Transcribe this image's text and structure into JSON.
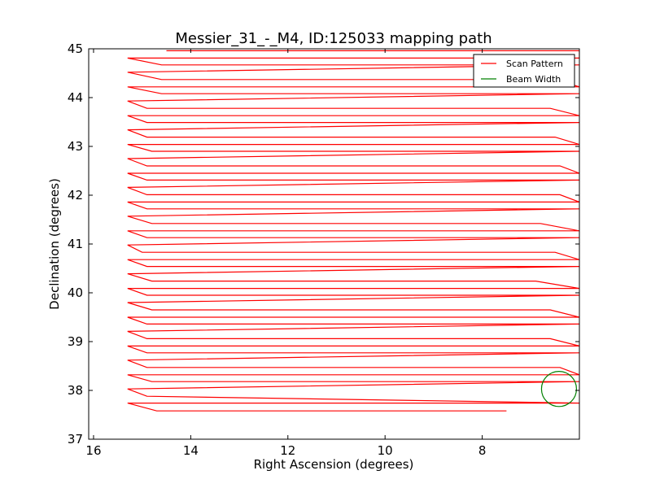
{
  "chart_data": {
    "type": "line",
    "title": "Messier_31_-_M4, ID:125033 mapping path",
    "xlabel": "Right Ascension (degrees)",
    "ylabel": "Declination (degrees)",
    "xlim": [
      16.1,
      6.0
    ],
    "ylim": [
      37,
      45
    ],
    "x_inverted": true,
    "xticks": [
      16,
      14,
      12,
      10,
      8
    ],
    "xtick_labels": [
      "16",
      "14",
      "12",
      "10",
      "8"
    ],
    "yticks": [
      37,
      38,
      39,
      40,
      41,
      42,
      43,
      44,
      45
    ],
    "ytick_labels": [
      "37",
      "38",
      "39",
      "40",
      "41",
      "42",
      "43",
      "44",
      "45"
    ],
    "grid": false,
    "legend_position": "top-right",
    "legend": [
      {
        "label": "Scan Pattern",
        "color": "#ff0000"
      },
      {
        "label": "Beam Width",
        "color": "#008000"
      }
    ],
    "series": [
      {
        "name": "Scan Pattern",
        "color": "#ff0000",
        "points": [
          [
            7.5,
            37.58
          ],
          [
            14.7,
            37.58
          ],
          [
            15.3,
            37.74
          ],
          [
            6.0,
            37.74
          ],
          [
            14.9,
            37.88
          ],
          [
            15.3,
            38.03
          ],
          [
            6.0,
            38.18
          ],
          [
            14.8,
            38.18
          ],
          [
            15.3,
            38.32
          ],
          [
            6.0,
            38.32
          ],
          [
            6.4,
            38.47
          ],
          [
            14.9,
            38.47
          ],
          [
            15.3,
            38.62
          ],
          [
            6.0,
            38.77
          ],
          [
            14.9,
            38.77
          ],
          [
            15.3,
            38.91
          ],
          [
            6.0,
            38.91
          ],
          [
            6.6,
            39.06
          ],
          [
            14.9,
            39.06
          ],
          [
            15.3,
            39.21
          ],
          [
            6.0,
            39.36
          ],
          [
            14.9,
            39.36
          ],
          [
            15.3,
            39.5
          ],
          [
            6.0,
            39.5
          ],
          [
            6.6,
            39.65
          ],
          [
            14.8,
            39.65
          ],
          [
            15.3,
            39.8
          ],
          [
            6.0,
            39.95
          ],
          [
            14.9,
            39.95
          ],
          [
            15.3,
            40.09
          ],
          [
            6.0,
            40.09
          ],
          [
            6.9,
            40.24
          ],
          [
            14.8,
            40.24
          ],
          [
            15.3,
            40.39
          ],
          [
            6.0,
            40.54
          ],
          [
            14.9,
            40.54
          ],
          [
            15.3,
            40.68
          ],
          [
            6.0,
            40.68
          ],
          [
            6.5,
            40.83
          ],
          [
            15.0,
            40.83
          ],
          [
            15.3,
            40.98
          ],
          [
            6.0,
            41.13
          ],
          [
            14.9,
            41.13
          ],
          [
            15.3,
            41.27
          ],
          [
            6.0,
            41.27
          ],
          [
            6.8,
            41.42
          ],
          [
            14.8,
            41.42
          ],
          [
            15.3,
            41.57
          ],
          [
            6.0,
            41.72
          ],
          [
            14.9,
            41.72
          ],
          [
            15.3,
            41.86
          ],
          [
            6.0,
            41.86
          ],
          [
            6.4,
            42.01
          ],
          [
            14.9,
            42.01
          ],
          [
            15.3,
            42.16
          ],
          [
            6.0,
            42.31
          ],
          [
            14.9,
            42.31
          ],
          [
            15.3,
            42.45
          ],
          [
            6.0,
            42.45
          ],
          [
            6.4,
            42.6
          ],
          [
            14.9,
            42.6
          ],
          [
            15.3,
            42.75
          ],
          [
            6.0,
            42.9
          ],
          [
            14.8,
            42.9
          ],
          [
            15.3,
            43.04
          ],
          [
            6.0,
            43.04
          ],
          [
            6.5,
            43.19
          ],
          [
            14.9,
            43.19
          ],
          [
            15.3,
            43.34
          ],
          [
            6.0,
            43.49
          ],
          [
            14.9,
            43.49
          ],
          [
            15.3,
            43.63
          ],
          [
            6.0,
            43.63
          ],
          [
            6.6,
            43.78
          ],
          [
            14.9,
            43.78
          ],
          [
            15.3,
            43.93
          ],
          [
            6.0,
            44.08
          ],
          [
            14.6,
            44.08
          ],
          [
            15.3,
            44.22
          ],
          [
            6.0,
            44.22
          ],
          [
            6.5,
            44.37
          ],
          [
            14.6,
            44.37
          ],
          [
            15.3,
            44.52
          ],
          [
            6.0,
            44.67
          ],
          [
            14.6,
            44.67
          ],
          [
            15.3,
            44.81
          ],
          [
            6.0,
            44.81
          ],
          [
            6.0,
            44.96
          ],
          [
            14.5,
            44.96
          ]
        ]
      },
      {
        "name": "Beam Width",
        "color": "#008000",
        "shape": "circle",
        "center": [
          6.42,
          38.03
        ],
        "radius_deg": 0.36
      }
    ]
  }
}
